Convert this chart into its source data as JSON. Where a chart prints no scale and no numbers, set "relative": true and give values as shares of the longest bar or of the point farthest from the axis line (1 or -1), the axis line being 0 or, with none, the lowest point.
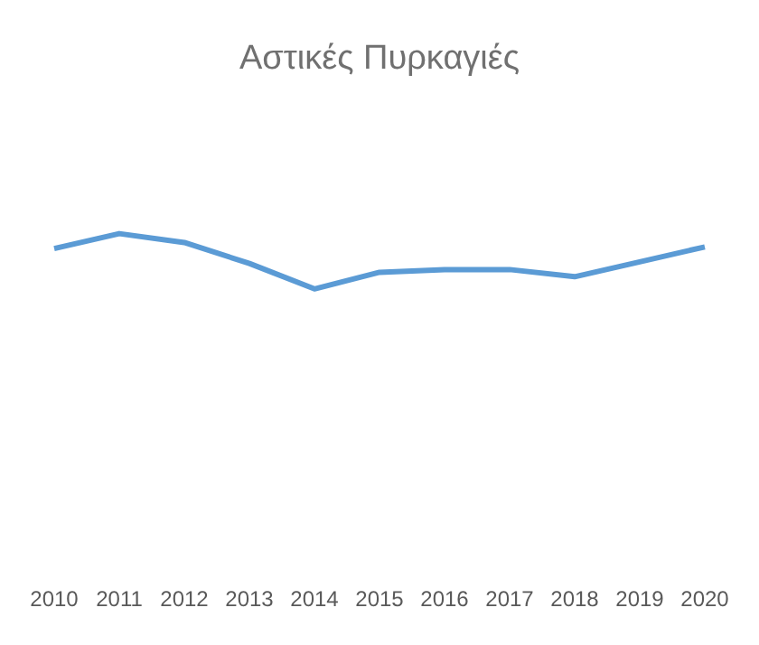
{
  "chart_data": {
    "type": "line",
    "title": "Αστικές Πυρκαγιές",
    "relative": true,
    "categories": [
      "2010",
      "2011",
      "2012",
      "2013",
      "2014",
      "2015",
      "2016",
      "2017",
      "2018",
      "2019",
      "2020"
    ],
    "series": [
      {
        "color": "#5b9bd5",
        "values": [
          0.73,
          1,
          0.84,
          0.46,
          0,
          0.3,
          0.35,
          0.35,
          0.22,
          0.49,
          0.76
        ]
      }
    ],
    "marker": "none",
    "line_style": "solid"
  }
}
